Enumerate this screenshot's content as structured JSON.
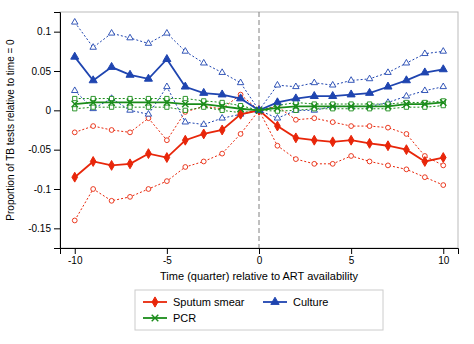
{
  "chart_data": {
    "type": "line",
    "xlabel": "Time (quarter) relative to ART availability",
    "ylabel": "Proportion of TB tests relative to time = 0",
    "x": [
      -10,
      -9,
      -8,
      -7,
      -6,
      -5,
      -4,
      -3,
      -2,
      -1,
      0,
      1,
      2,
      3,
      4,
      5,
      6,
      7,
      8,
      9,
      10
    ],
    "series": [
      {
        "name": "Sputum smear",
        "color": "#e8260a",
        "marker": "diamond",
        "line_style": "solid",
        "values": [
          -0.085,
          -0.065,
          -0.07,
          -0.068,
          -0.055,
          -0.06,
          -0.038,
          -0.03,
          -0.025,
          -0.005,
          0.0,
          -0.02,
          -0.035,
          -0.038,
          -0.04,
          -0.038,
          -0.042,
          -0.045,
          -0.05,
          -0.065,
          -0.06
        ],
        "upper": [
          -0.028,
          -0.02,
          -0.025,
          -0.028,
          -0.01,
          -0.038,
          -0.002,
          0.005,
          0.002,
          0.02,
          0.0,
          0.005,
          -0.012,
          -0.01,
          -0.015,
          -0.02,
          -0.02,
          -0.022,
          -0.03,
          -0.058,
          -0.07
        ],
        "lower": [
          -0.14,
          -0.1,
          -0.115,
          -0.11,
          -0.1,
          -0.09,
          -0.072,
          -0.065,
          -0.055,
          -0.03,
          0.0,
          -0.045,
          -0.062,
          -0.068,
          -0.068,
          -0.058,
          -0.065,
          -0.07,
          -0.075,
          -0.085,
          -0.095
        ]
      },
      {
        "name": "Culture",
        "color": "#1f45b0",
        "marker": "triangle",
        "line_style": "solid",
        "values": [
          0.068,
          0.038,
          0.055,
          0.045,
          0.04,
          0.065,
          0.03,
          0.022,
          0.02,
          0.015,
          0.0,
          0.01,
          0.015,
          0.018,
          0.018,
          0.02,
          0.022,
          0.03,
          0.038,
          0.048,
          0.052
        ],
        "upper": [
          0.112,
          0.08,
          0.098,
          0.092,
          0.085,
          0.098,
          0.075,
          0.06,
          0.048,
          0.035,
          0.0,
          0.032,
          0.03,
          0.035,
          0.032,
          0.038,
          0.04,
          0.048,
          0.06,
          0.072,
          0.075
        ],
        "lower": [
          0.025,
          0.002,
          0.015,
          0.0,
          -0.005,
          0.03,
          -0.015,
          -0.018,
          -0.01,
          -0.005,
          0.0,
          -0.01,
          0.0,
          0.0,
          0.005,
          0.005,
          0.005,
          0.01,
          0.018,
          0.025,
          0.03
        ]
      },
      {
        "name": "PCR",
        "color": "#1a8c1a",
        "marker": "x",
        "line_style": "solid",
        "values": [
          0.008,
          0.01,
          0.01,
          0.01,
          0.01,
          0.01,
          0.008,
          0.008,
          0.005,
          0.002,
          0.0,
          0.003,
          0.005,
          0.005,
          0.005,
          0.005,
          0.005,
          0.005,
          0.008,
          0.008,
          0.01
        ],
        "upper": [
          0.015,
          0.015,
          0.015,
          0.015,
          0.015,
          0.015,
          0.015,
          0.012,
          0.01,
          0.006,
          0.0,
          0.006,
          0.01,
          0.008,
          0.008,
          0.008,
          0.008,
          0.008,
          0.01,
          0.01,
          0.012
        ],
        "lower": [
          0.002,
          0.004,
          0.004,
          0.004,
          0.004,
          0.004,
          0.0,
          0.004,
          0.0,
          -0.003,
          0.0,
          -0.001,
          0.0,
          0.002,
          0.002,
          0.002,
          0.002,
          0.002,
          0.004,
          0.004,
          0.006
        ]
      }
    ],
    "vline": {
      "x": 0,
      "color": "#808080"
    },
    "xlim": [
      -10.8,
      10.8
    ],
    "ylim": [
      -0.175,
      0.125
    ],
    "xticks": [
      -10,
      -5,
      0,
      5,
      10
    ],
    "yticks": [
      -0.15,
      -0.1,
      -0.05,
      0,
      0.05,
      0.1
    ],
    "legend": "bottom"
  }
}
